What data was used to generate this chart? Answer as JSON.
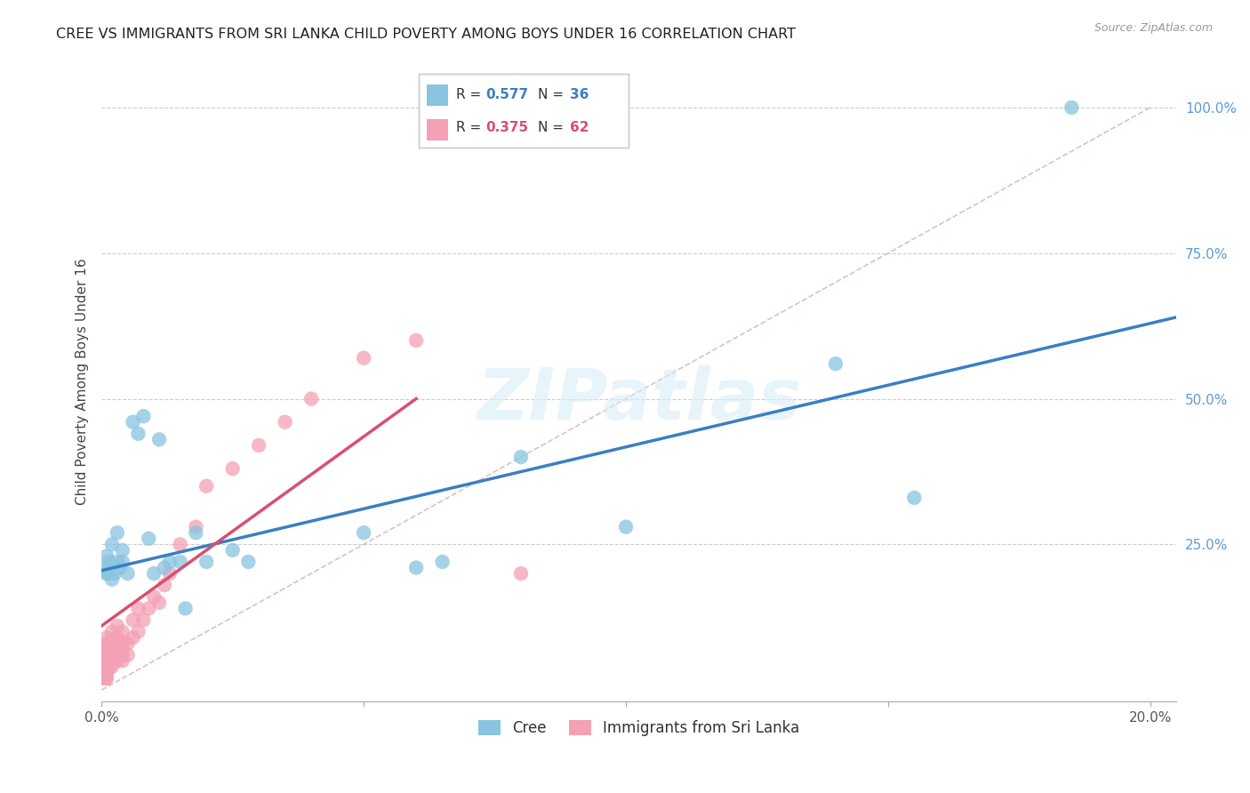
{
  "title": "CREE VS IMMIGRANTS FROM SRI LANKA CHILD POVERTY AMONG BOYS UNDER 16 CORRELATION CHART",
  "source": "Source: ZipAtlas.com",
  "ylabel": "Child Poverty Among Boys Under 16",
  "watermark": "ZIPatlas",
  "cree_color": "#89c4e1",
  "srilanka_color": "#f4a0b5",
  "cree_line_color": "#3a7fc1",
  "srilanka_line_color": "#d94f6e",
  "diagonal_color": "#d0b0c0",
  "xlim": [
    0.0,
    0.205
  ],
  "ylim": [
    -0.02,
    1.08
  ],
  "cree_R": "0.577",
  "cree_N": "36",
  "srilanka_R": "0.375",
  "srilanka_N": "62",
  "cree_x": [
    0.0008,
    0.001,
    0.001,
    0.0015,
    0.002,
    0.002,
    0.0025,
    0.003,
    0.003,
    0.0035,
    0.004,
    0.004,
    0.005,
    0.006,
    0.007,
    0.008,
    0.009,
    0.01,
    0.011,
    0.012,
    0.013,
    0.015,
    0.016,
    0.018,
    0.02,
    0.025,
    0.028,
    0.05,
    0.06,
    0.065,
    0.08,
    0.1,
    0.14,
    0.155,
    0.185,
    0.001
  ],
  "cree_y": [
    0.21,
    0.2,
    0.23,
    0.22,
    0.19,
    0.25,
    0.2,
    0.22,
    0.27,
    0.21,
    0.24,
    0.22,
    0.2,
    0.46,
    0.44,
    0.47,
    0.26,
    0.2,
    0.43,
    0.21,
    0.22,
    0.22,
    0.14,
    0.27,
    0.22,
    0.24,
    0.22,
    0.27,
    0.21,
    0.22,
    0.4,
    0.28,
    0.56,
    0.33,
    1.0,
    0.2
  ],
  "srilanka_x": [
    0.0004,
    0.0005,
    0.0005,
    0.0006,
    0.0007,
    0.0008,
    0.0008,
    0.0009,
    0.001,
    0.001,
    0.001,
    0.001,
    0.001,
    0.001,
    0.001,
    0.001,
    0.0012,
    0.0013,
    0.0014,
    0.0015,
    0.0015,
    0.0016,
    0.0018,
    0.002,
    0.002,
    0.002,
    0.002,
    0.002,
    0.002,
    0.0025,
    0.0025,
    0.003,
    0.003,
    0.003,
    0.003,
    0.004,
    0.004,
    0.004,
    0.004,
    0.004,
    0.005,
    0.005,
    0.006,
    0.006,
    0.007,
    0.007,
    0.008,
    0.009,
    0.01,
    0.011,
    0.012,
    0.013,
    0.015,
    0.018,
    0.02,
    0.025,
    0.03,
    0.035,
    0.04,
    0.05,
    0.06,
    0.08
  ],
  "srilanka_y": [
    0.02,
    0.03,
    0.04,
    0.05,
    0.06,
    0.02,
    0.07,
    0.03,
    0.02,
    0.03,
    0.04,
    0.05,
    0.06,
    0.07,
    0.08,
    0.09,
    0.04,
    0.05,
    0.06,
    0.04,
    0.08,
    0.06,
    0.05,
    0.04,
    0.05,
    0.06,
    0.07,
    0.08,
    0.1,
    0.06,
    0.08,
    0.05,
    0.07,
    0.09,
    0.11,
    0.05,
    0.06,
    0.07,
    0.08,
    0.1,
    0.06,
    0.08,
    0.09,
    0.12,
    0.1,
    0.14,
    0.12,
    0.14,
    0.16,
    0.15,
    0.18,
    0.2,
    0.25,
    0.28,
    0.35,
    0.38,
    0.42,
    0.46,
    0.5,
    0.57,
    0.6,
    0.2
  ],
  "cree_line_x": [
    0.0,
    0.205
  ],
  "cree_line_y": [
    0.205,
    0.64
  ],
  "srilanka_line_x": [
    0.0,
    0.06
  ],
  "srilanka_line_y": [
    0.11,
    0.5
  ]
}
